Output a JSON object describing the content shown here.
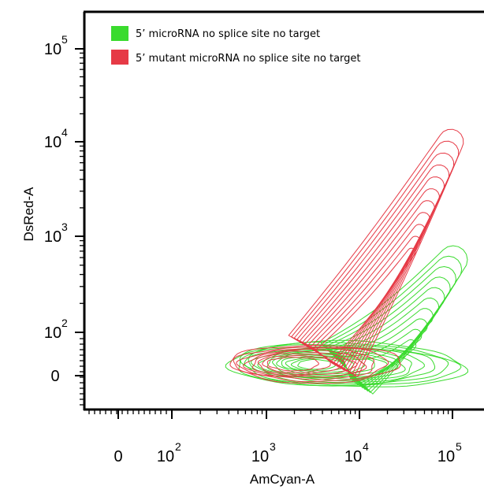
{
  "chart_data": {
    "type": "contour",
    "xlabel": "AmCyan-A",
    "ylabel": "DsRed-A",
    "x_scale": "biexponential",
    "y_scale": "biexponential",
    "x_ticks": [
      {
        "value": 0,
        "label": "0"
      },
      {
        "value": 100,
        "label": "10",
        "exp": "2"
      },
      {
        "value": 1000,
        "label": "10",
        "exp": "3"
      },
      {
        "value": 10000,
        "label": "10",
        "exp": "4"
      },
      {
        "value": 100000,
        "label": "10",
        "exp": "5"
      }
    ],
    "y_ticks": [
      {
        "value": 0,
        "label": "0"
      },
      {
        "value": 100,
        "label": "10",
        "exp": "2"
      },
      {
        "value": 1000,
        "label": "10",
        "exp": "3"
      },
      {
        "value": 10000,
        "label": "10",
        "exp": "4"
      },
      {
        "value": 100000,
        "label": "10",
        "exp": "5"
      }
    ],
    "legend_position": "top-left",
    "series": [
      {
        "name": "5' microRNA no splice site no target",
        "color": "#3adb2e",
        "population": {
          "x_range": [
            400,
            130000
          ],
          "y_range": [
            -20,
            900
          ],
          "peak": [
            1500,
            30
          ]
        }
      },
      {
        "name": "5' mutant microRNA no splice site no target",
        "color": "#e63a46",
        "population": {
          "x_range": [
            400,
            120000
          ],
          "y_range": [
            -20,
            11000
          ],
          "peak": [
            5000,
            150
          ]
        }
      }
    ],
    "legend_labels": [
      "5’ microRNA no splice site no target",
      "5’ mutant microRNA no splice site no target"
    ]
  }
}
